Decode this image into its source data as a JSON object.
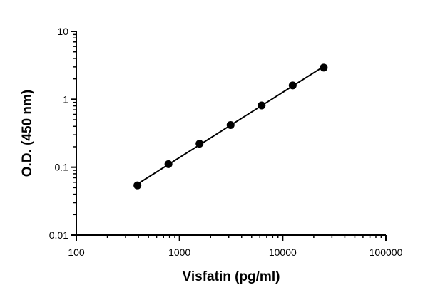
{
  "chart_data": {
    "type": "scatter",
    "title": "",
    "xlabel": "Visfatin (pg/ml)",
    "ylabel": "O.D. (450 nm)",
    "xscale": "log",
    "yscale": "log",
    "xlim": [
      100,
      100000
    ],
    "ylim": [
      0.01,
      10
    ],
    "xticks": [
      100,
      1000,
      10000,
      100000
    ],
    "xtick_labels": [
      "100",
      "1000",
      "10000",
      "100000"
    ],
    "yticks": [
      0.01,
      0.1,
      1,
      10
    ],
    "ytick_labels": [
      "0.01",
      "0.1",
      "1",
      "10"
    ],
    "grid": false,
    "legend": "none",
    "fit_line": true,
    "marker_color": "#000000",
    "series": [
      {
        "x": [
          391,
          781,
          1563,
          3125,
          6250,
          12500,
          25000
        ],
        "y": [
          0.054,
          0.111,
          0.222,
          0.418,
          0.812,
          1.6,
          2.93
        ]
      }
    ]
  }
}
